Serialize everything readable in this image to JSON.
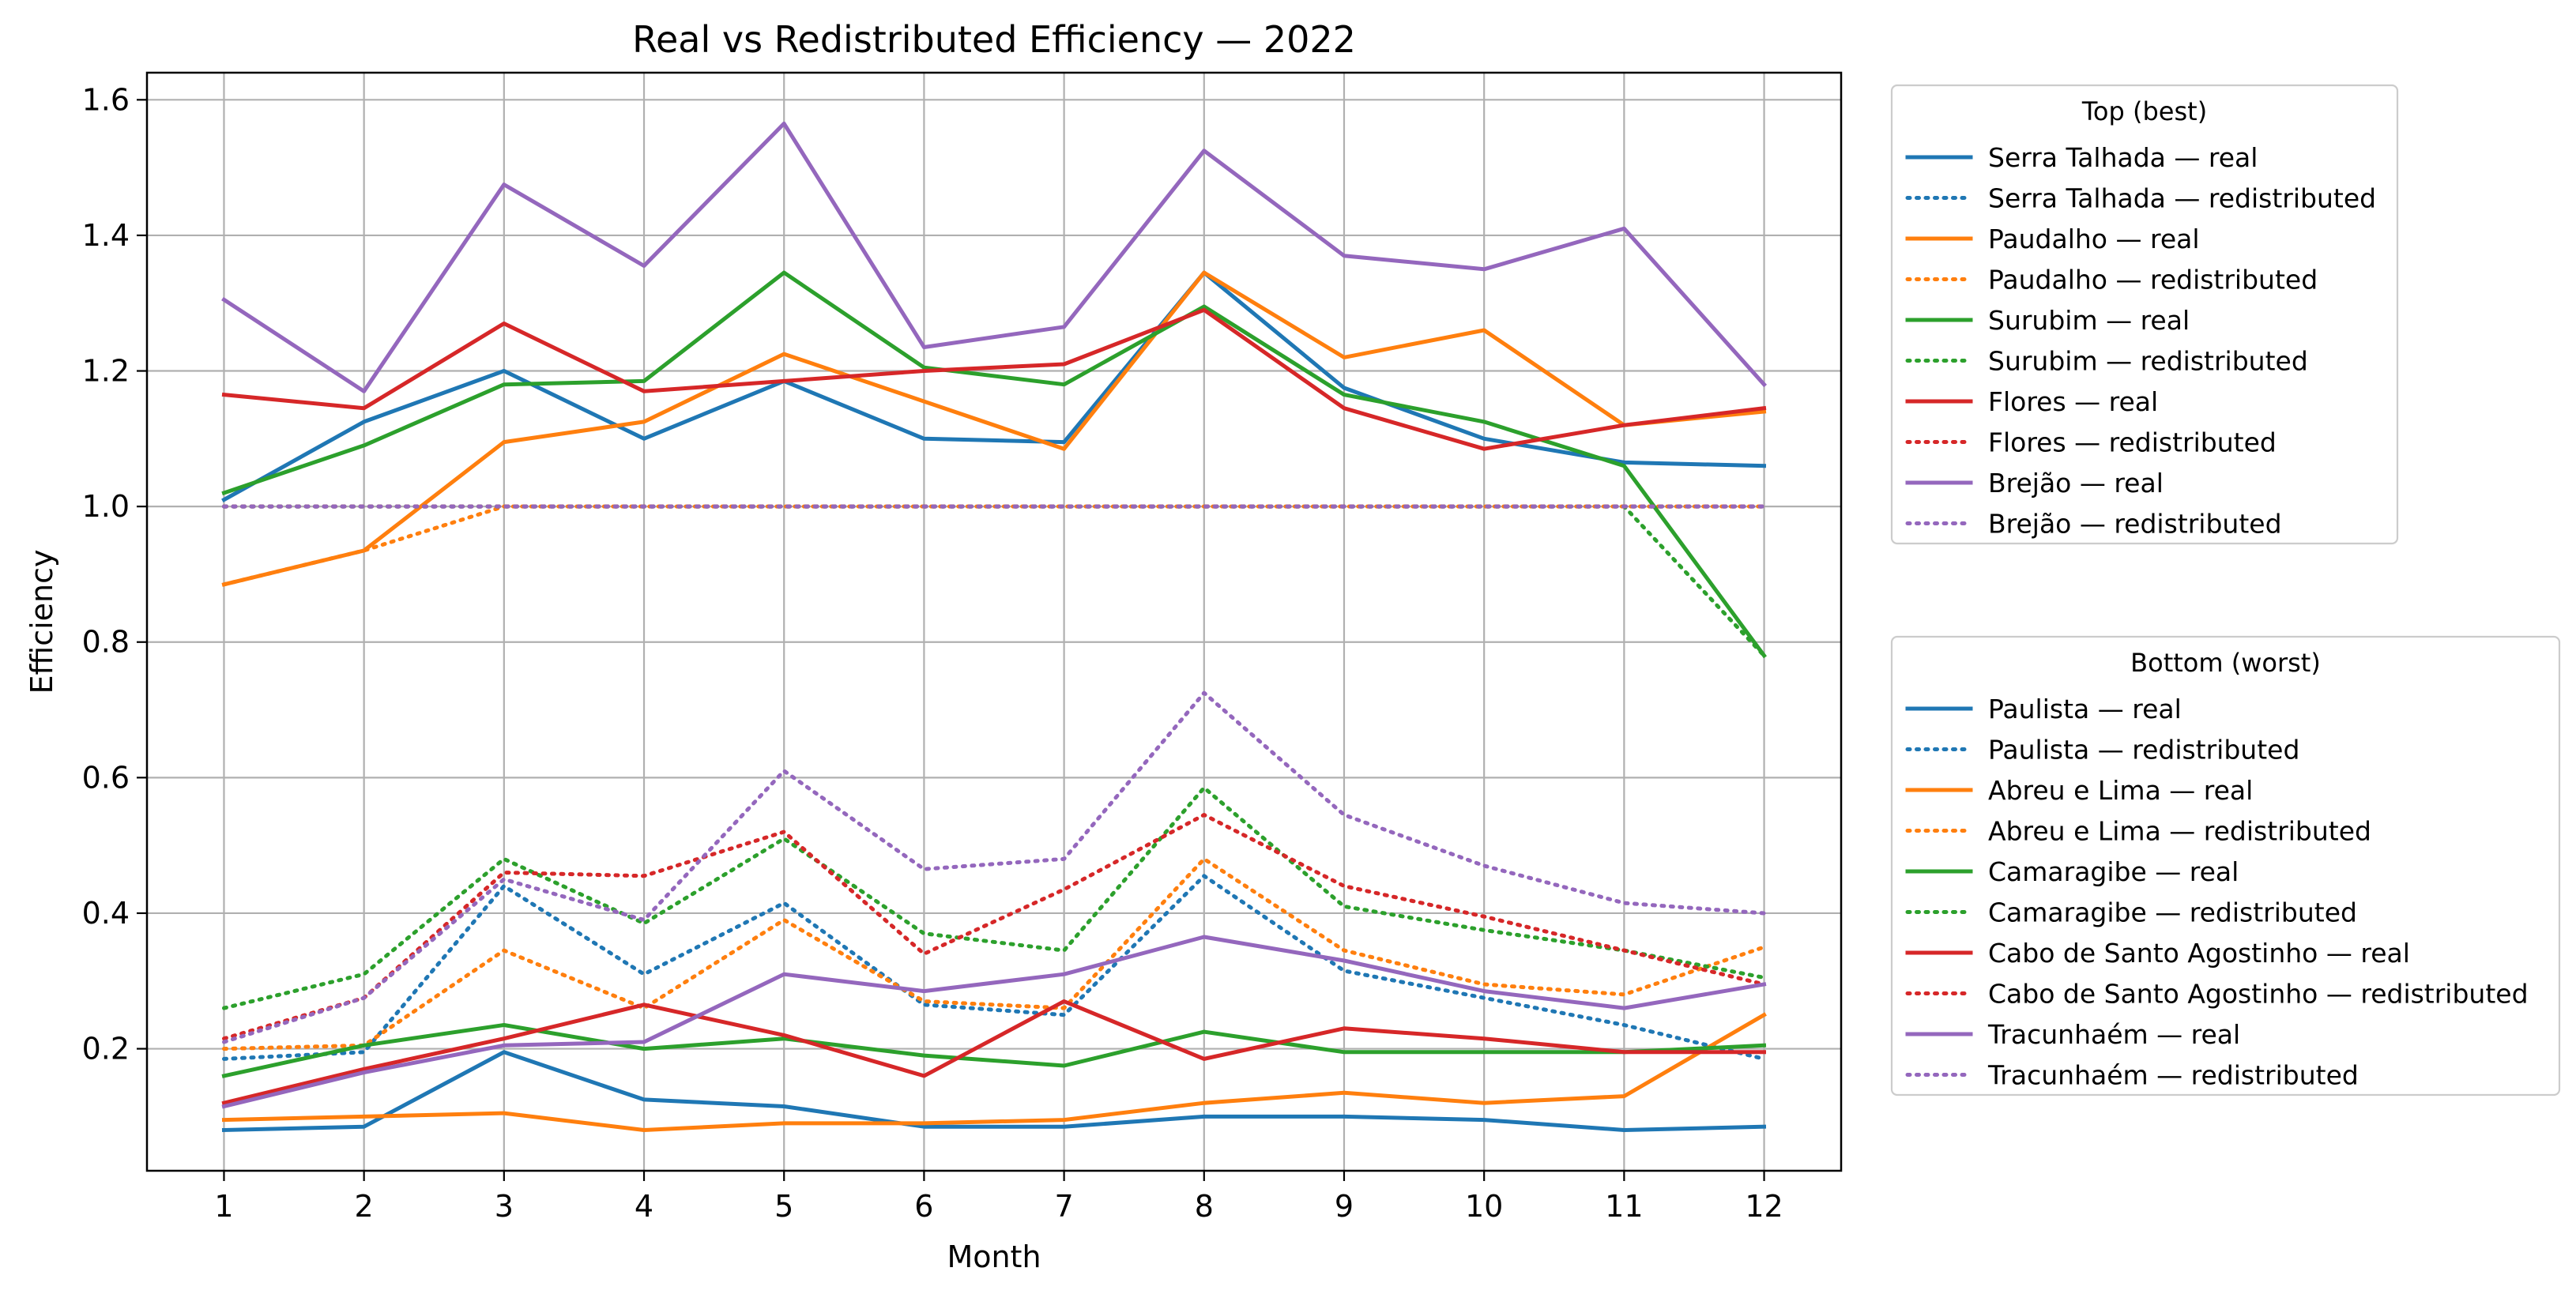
{
  "chart_data": {
    "type": "line",
    "title": "Real vs Redistributed Efficiency — 2022",
    "xlabel": "Month",
    "ylabel": "Efficiency",
    "x": [
      1,
      2,
      3,
      4,
      5,
      6,
      7,
      8,
      9,
      10,
      11,
      12
    ],
    "xlim": [
      0.45,
      12.55
    ],
    "ylim": [
      0.02,
      1.64
    ],
    "yticks": [
      0.2,
      0.4,
      0.6,
      0.8,
      1.0,
      1.2,
      1.4,
      1.6
    ],
    "ytick_labels": [
      "0.2",
      "0.4",
      "0.6",
      "0.8",
      "1.0",
      "1.2",
      "1.4",
      "1.6"
    ],
    "xtick_labels": [
      "1",
      "2",
      "3",
      "4",
      "5",
      "6",
      "7",
      "8",
      "9",
      "10",
      "11",
      "12"
    ],
    "grid": true,
    "colors": {
      "blue": "#1f77b4",
      "orange": "#ff7f0e",
      "green": "#2ca02c",
      "red": "#d62728",
      "purple": "#9467bd",
      "grid": "#b0b0b0"
    },
    "legends": [
      {
        "title": "Top (best)",
        "placement": "outside right, upper",
        "entries": [
          {
            "name": "Serra Talhada — real",
            "color": "#1f77b4",
            "style": "solid",
            "values": [
              1.01,
              1.125,
              1.2,
              1.1,
              1.185,
              1.1,
              1.095,
              1.345,
              1.175,
              1.1,
              1.065,
              1.06
            ]
          },
          {
            "name": "Serra Talhada — redistributed",
            "color": "#1f77b4",
            "style": "dotted",
            "values": [
              1.0,
              1.0,
              1.0,
              1.0,
              1.0,
              1.0,
              1.0,
              1.0,
              1.0,
              1.0,
              1.0,
              1.0
            ]
          },
          {
            "name": "Paudalho — real",
            "color": "#ff7f0e",
            "style": "solid",
            "values": [
              0.885,
              0.935,
              1.095,
              1.125,
              1.225,
              1.155,
              1.085,
              1.345,
              1.22,
              1.26,
              1.12,
              1.14
            ]
          },
          {
            "name": "Paudalho — redistributed",
            "color": "#ff7f0e",
            "style": "dotted",
            "values": [
              0.885,
              0.935,
              1.0,
              1.0,
              1.0,
              1.0,
              1.0,
              1.0,
              1.0,
              1.0,
              1.0,
              1.0
            ]
          },
          {
            "name": "Surubim — real",
            "color": "#2ca02c",
            "style": "solid",
            "values": [
              1.02,
              1.09,
              1.18,
              1.185,
              1.345,
              1.205,
              1.18,
              1.295,
              1.165,
              1.125,
              1.06,
              0.78
            ]
          },
          {
            "name": "Surubim — redistributed",
            "color": "#2ca02c",
            "style": "dotted",
            "values": [
              1.0,
              1.0,
              1.0,
              1.0,
              1.0,
              1.0,
              1.0,
              1.0,
              1.0,
              1.0,
              1.0,
              0.78
            ]
          },
          {
            "name": "Flores — real",
            "color": "#d62728",
            "style": "solid",
            "values": [
              1.165,
              1.145,
              1.27,
              1.17,
              1.185,
              1.2,
              1.21,
              1.29,
              1.145,
              1.085,
              1.12,
              1.145
            ]
          },
          {
            "name": "Flores — redistributed",
            "color": "#d62728",
            "style": "dotted",
            "values": [
              1.0,
              1.0,
              1.0,
              1.0,
              1.0,
              1.0,
              1.0,
              1.0,
              1.0,
              1.0,
              1.0,
              1.0
            ]
          },
          {
            "name": "Brejão — real",
            "color": "#9467bd",
            "style": "solid",
            "values": [
              1.305,
              1.17,
              1.475,
              1.355,
              1.565,
              1.235,
              1.265,
              1.525,
              1.37,
              1.35,
              1.41,
              1.18
            ]
          },
          {
            "name": "Brejão — redistributed",
            "color": "#9467bd",
            "style": "dotted",
            "values": [
              1.0,
              1.0,
              1.0,
              1.0,
              1.0,
              1.0,
              1.0,
              1.0,
              1.0,
              1.0,
              1.0,
              1.0
            ]
          }
        ]
      },
      {
        "title": "Bottom (worst)",
        "placement": "outside right, lower",
        "entries": [
          {
            "name": "Paulista — real",
            "color": "#1f77b4",
            "style": "solid",
            "values": [
              0.08,
              0.085,
              0.195,
              0.125,
              0.115,
              0.085,
              0.085,
              0.1,
              0.1,
              0.095,
              0.08,
              0.085
            ]
          },
          {
            "name": "Paulista — redistributed",
            "color": "#1f77b4",
            "style": "dotted",
            "values": [
              0.185,
              0.195,
              0.44,
              0.31,
              0.415,
              0.265,
              0.25,
              0.455,
              0.315,
              0.275,
              0.235,
              0.185
            ]
          },
          {
            "name": "Abreu e Lima — real",
            "color": "#ff7f0e",
            "style": "solid",
            "values": [
              0.095,
              0.1,
              0.105,
              0.08,
              0.09,
              0.09,
              0.095,
              0.12,
              0.135,
              0.12,
              0.13,
              0.25
            ]
          },
          {
            "name": "Abreu e Lima — redistributed",
            "color": "#ff7f0e",
            "style": "dotted",
            "values": [
              0.2,
              0.205,
              0.345,
              0.26,
              0.39,
              0.27,
              0.26,
              0.48,
              0.345,
              0.295,
              0.28,
              0.35
            ]
          },
          {
            "name": "Camaragibe — real",
            "color": "#2ca02c",
            "style": "solid",
            "values": [
              0.16,
              0.205,
              0.235,
              0.2,
              0.215,
              0.19,
              0.175,
              0.225,
              0.195,
              0.195,
              0.195,
              0.205
            ]
          },
          {
            "name": "Camaragibe — redistributed",
            "color": "#2ca02c",
            "style": "dotted",
            "values": [
              0.26,
              0.31,
              0.48,
              0.385,
              0.51,
              0.37,
              0.345,
              0.585,
              0.41,
              0.375,
              0.345,
              0.305
            ]
          },
          {
            "name": "Cabo de Santo Agostinho — real",
            "color": "#d62728",
            "style": "solid",
            "values": [
              0.12,
              0.17,
              0.215,
              0.265,
              0.22,
              0.16,
              0.27,
              0.185,
              0.23,
              0.215,
              0.195,
              0.195
            ]
          },
          {
            "name": "Cabo de Santo Agostinho — redistributed",
            "color": "#d62728",
            "style": "dotted",
            "values": [
              0.215,
              0.275,
              0.46,
              0.455,
              0.52,
              0.34,
              0.435,
              0.545,
              0.44,
              0.395,
              0.345,
              0.295
            ]
          },
          {
            "name": "Tracunhaém — real",
            "color": "#9467bd",
            "style": "solid",
            "values": [
              0.115,
              0.165,
              0.205,
              0.21,
              0.31,
              0.285,
              0.31,
              0.365,
              0.33,
              0.285,
              0.26,
              0.295
            ]
          },
          {
            "name": "Tracunhaém — redistributed",
            "color": "#9467bd",
            "style": "dotted",
            "values": [
              0.21,
              0.275,
              0.45,
              0.39,
              0.61,
              0.465,
              0.48,
              0.725,
              0.545,
              0.47,
              0.415,
              0.4
            ]
          }
        ]
      }
    ]
  }
}
